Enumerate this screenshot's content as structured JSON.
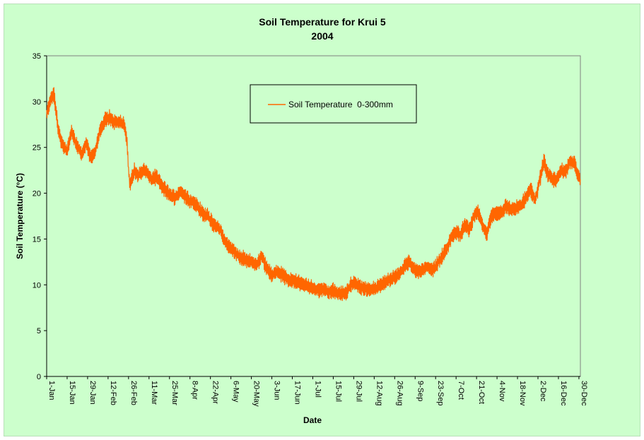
{
  "chart_data": {
    "type": "line",
    "title": "Soil Temperature for Krui 5",
    "subtitle": "2004",
    "xlabel": "Date",
    "ylabel": "Soil Temperature (°C)",
    "ylim": [
      0,
      35
    ],
    "y_ticks": [
      0,
      5,
      10,
      15,
      20,
      25,
      30,
      35
    ],
    "x_tick_labels": [
      "1-Jan",
      "15-Jan",
      "29-Jan",
      "12-Feb",
      "26-Feb",
      "11-Mar",
      "25-Mar",
      "8-Apr",
      "22-Apr",
      "6-May",
      "20-May",
      "3-Jun",
      "17-Jun",
      "1-Jul",
      "15-Jul",
      "29-Jul",
      "12-Aug",
      "26-Aug",
      "9-Sep",
      "23-Sep",
      "7-Oct",
      "21-Oct",
      "4-Nov",
      "18-Nov",
      "2-Dec",
      "16-Dec",
      "30-Dec"
    ],
    "x_days": [
      0,
      14,
      28,
      42,
      56,
      70,
      84,
      98,
      112,
      126,
      140,
      154,
      168,
      182,
      196,
      210,
      224,
      238,
      252,
      266,
      280,
      294,
      308,
      322,
      336,
      350,
      364
    ],
    "xlim_days": [
      0,
      365
    ],
    "grid": false,
    "legend_position": "top-center",
    "series": [
      {
        "name": "Soil Temperature  0-300mm",
        "color": "#ff6600",
        "x_days": [
          0,
          3,
          5,
          8,
          10,
          14,
          17,
          20,
          24,
          27,
          30,
          33,
          36,
          40,
          43,
          46,
          49,
          53,
          55,
          56,
          57,
          58,
          60,
          63,
          66,
          69,
          72,
          75,
          78,
          82,
          85,
          88,
          91,
          94,
          98,
          102,
          105,
          108,
          110,
          112,
          115,
          117,
          119,
          121,
          123,
          126,
          129,
          132,
          136,
          140,
          143,
          145,
          147,
          150,
          154,
          157,
          160,
          163,
          166,
          170,
          173,
          176,
          180,
          183,
          187,
          190,
          193,
          196,
          199,
          202,
          205,
          208,
          211,
          214,
          218,
          221,
          224,
          228,
          231,
          234,
          237,
          240,
          243,
          245,
          248,
          251,
          254,
          257,
          260,
          263,
          266,
          269,
          272,
          274,
          277,
          280,
          283,
          286,
          289,
          292,
          295,
          298,
          301,
          304,
          307,
          311,
          314,
          317,
          320,
          322,
          325,
          328,
          331,
          334,
          336,
          338,
          340,
          343,
          346,
          349,
          352,
          355,
          358,
          361,
          363,
          365
        ],
        "values": [
          28.5,
          30.5,
          30.8,
          27,
          25.5,
          24.5,
          26.8,
          25.5,
          24.2,
          25.5,
          23.8,
          24.5,
          26.5,
          28.0,
          28.3,
          27.8,
          27.8,
          27.5,
          25.5,
          22.5,
          21.0,
          21.5,
          22.5,
          22.0,
          22.5,
          22.2,
          21.5,
          21.8,
          21.0,
          20.2,
          19.8,
          19.5,
          20.2,
          19.8,
          19.2,
          18.8,
          18.2,
          17.5,
          17.8,
          17.0,
          16.5,
          16.2,
          16.0,
          15.0,
          14.5,
          14.0,
          13.5,
          13.0,
          12.8,
          12.5,
          12.2,
          12.5,
          13.2,
          12.0,
          11.0,
          11.5,
          11.2,
          10.8,
          10.5,
          10.5,
          10.2,
          10.0,
          9.8,
          9.5,
          9.5,
          9.5,
          9.2,
          9.5,
          9.0,
          9.0,
          9.2,
          10.0,
          10.2,
          9.8,
          9.5,
          9.5,
          9.5,
          10.0,
          10.2,
          10.5,
          10.8,
          11.0,
          11.5,
          12.0,
          12.5,
          11.8,
          11.5,
          11.5,
          12.0,
          11.5,
          12.0,
          12.8,
          13.5,
          14.0,
          15.2,
          15.8,
          15.5,
          16.5,
          16.0,
          17.5,
          18.0,
          16.5,
          15.5,
          17.5,
          17.8,
          18.0,
          18.5,
          18.3,
          18.2,
          18.5,
          18.8,
          19.5,
          20.5,
          19.2,
          20.5,
          22.0,
          23.5,
          22.0,
          21.5,
          21.5,
          22.5,
          22.5,
          23.5,
          23.2,
          22.0,
          21.5
        ]
      }
    ]
  }
}
